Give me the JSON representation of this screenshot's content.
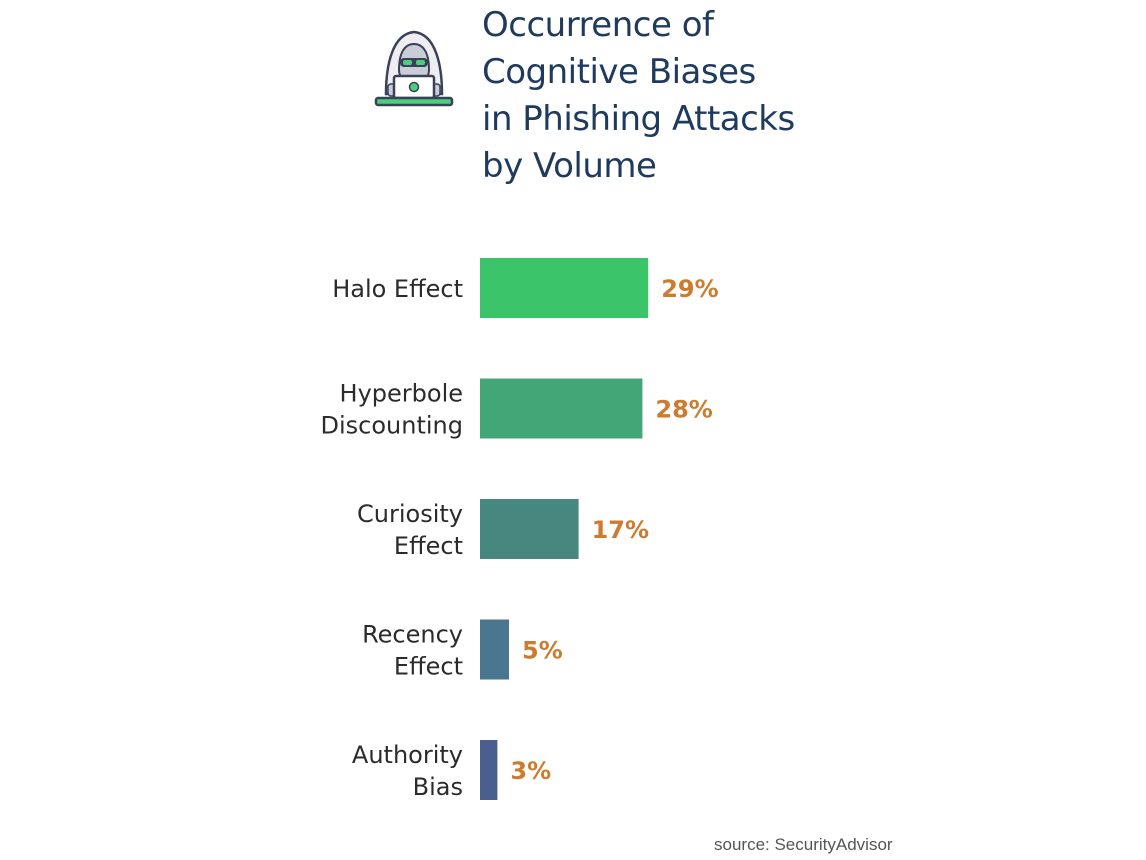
{
  "title": "Occurrence of\nCognitive Biases\nin Phishing Attacks\nby Volume",
  "logo_icon": "hooded-hacker-laptop-icon",
  "source": "source: SecurityAdvisor",
  "colors": {
    "title": "#1f3a5c",
    "value_label": "#cd7b2e",
    "category_label": "#2b2b2b"
  },
  "chart_data": {
    "type": "bar",
    "orientation": "horizontal",
    "title": "Occurrence of Cognitive Biases in Phishing Attacks by Volume",
    "categories": [
      [
        "Halo Effect"
      ],
      [
        "Hyperbole",
        "Discounting"
      ],
      [
        "Curiosity",
        "Effect"
      ],
      [
        "Recency",
        "Effect"
      ],
      [
        "Authority",
        "Bias"
      ]
    ],
    "values": [
      29,
      28,
      17,
      5,
      3
    ],
    "value_labels": [
      "29%",
      "28%",
      "17%",
      "5%",
      "3%"
    ],
    "bar_colors": [
      "#3cc46a",
      "#43a676",
      "#46877f",
      "#4a7690",
      "#4a5f8f"
    ],
    "xlabel": "",
    "ylabel": "",
    "grid": false,
    "legend": false
  }
}
